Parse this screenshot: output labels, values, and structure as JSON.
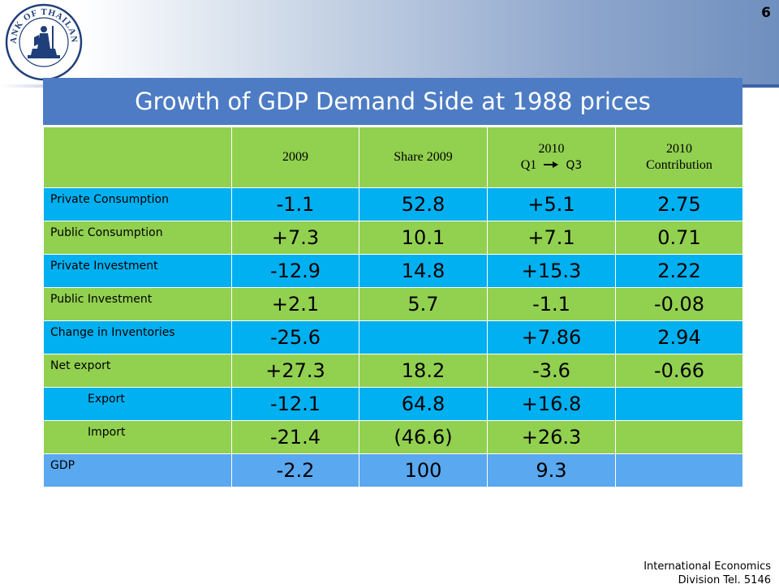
{
  "logo": {
    "text": "BANK OF THAILAND"
  },
  "page_number": "6",
  "table": {
    "title": "Growth of GDP Demand Side at 1988 prices",
    "headers": {
      "col1": "2009",
      "col2": "Share 2009",
      "col3_line1": "2010",
      "col3_line2_from": "Q1",
      "col3_line2_to": "Q3",
      "col4_line1": "2010",
      "col4_line2": "Contribution"
    },
    "rows": [
      {
        "label": "Private Consumption",
        "v2009": "-1.1",
        "share": "52.8",
        "v2010": "+5.1",
        "contrib": "2.75"
      },
      {
        "label": "Public Consumption",
        "v2009": "+7.3",
        "share": "10.1",
        "v2010": "+7.1",
        "contrib": "0.71"
      },
      {
        "label": "Private Investment",
        "v2009": "-12.9",
        "share": "14.8",
        "v2010": "+15.3",
        "contrib": "2.22"
      },
      {
        "label": "Public Investment",
        "v2009": "+2.1",
        "share": "5.7",
        "v2010": "-1.1",
        "contrib": "-0.08"
      },
      {
        "label": "Change in Inventories",
        "v2009": "-25.6",
        "share": "",
        "v2010": "+7.86",
        "contrib": "2.94"
      },
      {
        "label": "Net export",
        "v2009": "+27.3",
        "share": "18.2",
        "v2010": "-3.6",
        "contrib": "-0.66"
      },
      {
        "label": "Export",
        "v2009": "-12.1",
        "share": "64.8",
        "v2010": "+16.8",
        "contrib": ""
      },
      {
        "label": "Import",
        "v2009": "-21.4",
        "share": "(46.6)",
        "v2010": "+26.3",
        "contrib": ""
      },
      {
        "label": "GDP",
        "v2009": "-2.2",
        "share": "100",
        "v2010": "9.3",
        "contrib": ""
      }
    ]
  },
  "footer": {
    "line1": "International Economics",
    "line2": "Division Tel. 5146"
  }
}
